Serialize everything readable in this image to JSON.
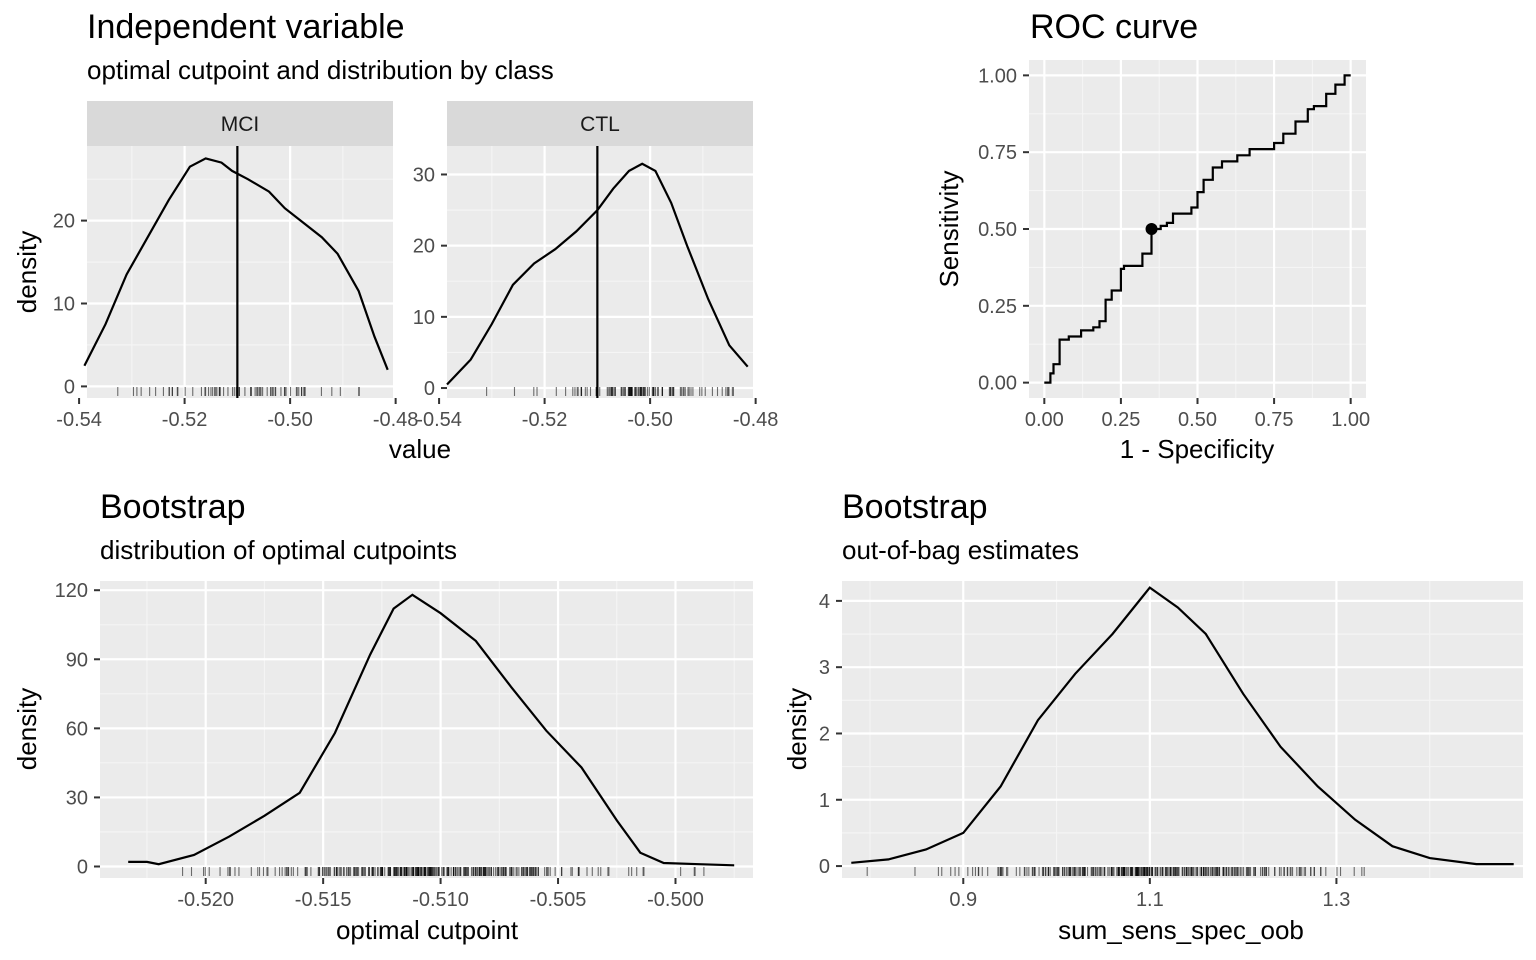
{
  "chart_data": [
    {
      "type": "line",
      "title": "Independent variable",
      "subtitle": "optimal cutpoint and distribution by class",
      "xlabel": "value",
      "ylabel": "density",
      "cutpoint": -0.51,
      "panels": [
        {
          "strip": "MCI",
          "xlim": [
            -0.54,
            -0.48
          ],
          "ylim": [
            0,
            29
          ],
          "xticks": [
            "-0.54",
            "-0.52",
            "-0.50",
            "-0.48"
          ],
          "yticks": [
            "0",
            "10",
            "20"
          ],
          "x": [
            -0.539,
            -0.535,
            -0.531,
            -0.527,
            -0.523,
            -0.519,
            -0.516,
            -0.513,
            -0.511,
            -0.508,
            -0.504,
            -0.501,
            -0.497,
            -0.494,
            -0.491,
            -0.487,
            -0.484,
            -0.4815
          ],
          "y": [
            2.5,
            7.5,
            13.5,
            18,
            22.5,
            26.5,
            27.5,
            27,
            26,
            25,
            23.5,
            21.5,
            19.5,
            18,
            16,
            11.5,
            6,
            2
          ]
        },
        {
          "strip": "CTL",
          "xlim": [
            -0.54,
            -0.48
          ],
          "ylim": [
            0,
            34
          ],
          "xticks": [
            "-0.54",
            "-0.52",
            "-0.50",
            "-0.48"
          ],
          "yticks": [
            "0",
            "10",
            "20",
            "30"
          ],
          "x": [
            -0.5385,
            -0.534,
            -0.53,
            -0.526,
            -0.522,
            -0.518,
            -0.514,
            -0.51,
            -0.507,
            -0.504,
            -0.5015,
            -0.499,
            -0.496,
            -0.493,
            -0.489,
            -0.485,
            -0.4815
          ],
          "y": [
            0.5,
            4,
            9,
            14.5,
            17.5,
            19.5,
            22,
            25,
            28,
            30.5,
            31.5,
            30.5,
            26,
            20,
            12.5,
            6,
            3
          ]
        }
      ]
    },
    {
      "type": "line",
      "title": "ROC curve",
      "xlabel": "1 - Specificity",
      "ylabel": "Sensitivity",
      "xlim": [
        0,
        1
      ],
      "ylim": [
        0,
        1
      ],
      "xticks": [
        "0.00",
        "0.25",
        "0.50",
        "0.75",
        "1.00"
      ],
      "yticks": [
        "0.00",
        "0.25",
        "0.50",
        "0.75",
        "1.00"
      ],
      "x": [
        0,
        0.02,
        0.03,
        0.05,
        0.08,
        0.12,
        0.13,
        0.16,
        0.18,
        0.2,
        0.22,
        0.25,
        0.26,
        0.3,
        0.32,
        0.35,
        0.38,
        0.4,
        0.42,
        0.45,
        0.48,
        0.5,
        0.52,
        0.55,
        0.58,
        0.6,
        0.63,
        0.67,
        0.72,
        0.75,
        0.78,
        0.82,
        0.86,
        0.88,
        0.92,
        0.95,
        0.98,
        1.0
      ],
      "y": [
        0,
        0.03,
        0.06,
        0.14,
        0.15,
        0.17,
        0.17,
        0.18,
        0.2,
        0.27,
        0.3,
        0.37,
        0.38,
        0.38,
        0.42,
        0.5,
        0.51,
        0.52,
        0.55,
        0.55,
        0.57,
        0.62,
        0.66,
        0.7,
        0.72,
        0.72,
        0.74,
        0.76,
        0.76,
        0.78,
        0.81,
        0.85,
        0.89,
        0.9,
        0.94,
        0.97,
        1.0,
        1.0
      ],
      "optimal_point": {
        "x": 0.35,
        "y": 0.5
      }
    },
    {
      "type": "line",
      "title": "Bootstrap",
      "subtitle": "distribution of optimal cutpoints",
      "xlabel": "optimal cutpoint",
      "ylabel": "density",
      "xlim": [
        -0.5245,
        -0.4967
      ],
      "ylim": [
        -5,
        124
      ],
      "xticks": [
        "-0.520",
        "-0.515",
        "-0.510",
        "-0.505",
        "-0.500"
      ],
      "yticks": [
        "0",
        "30",
        "60",
        "90",
        "120"
      ],
      "x": [
        -0.5233,
        -0.5225,
        -0.522,
        -0.5205,
        -0.519,
        -0.5175,
        -0.516,
        -0.5145,
        -0.513,
        -0.512,
        -0.5112,
        -0.51,
        -0.5085,
        -0.507,
        -0.5055,
        -0.504,
        -0.5025,
        -0.5015,
        -0.5005,
        -0.499,
        -0.4975
      ],
      "y": [
        2,
        2,
        1,
        5,
        13,
        22,
        32,
        58,
        92,
        112,
        118,
        110,
        98,
        78,
        59,
        43,
        20,
        6,
        1.5,
        1,
        0.5
      ]
    },
    {
      "type": "line",
      "title": "Bootstrap",
      "subtitle": "out-of-bag estimates",
      "xlabel": "sum_sens_spec_oob",
      "ylabel": "density",
      "xlim": [
        0.77,
        1.5
      ],
      "ylim": [
        -0.18,
        4.3
      ],
      "xticks": [
        "0.9",
        "1.1",
        "1.3"
      ],
      "yticks": [
        "0",
        "1",
        "2",
        "3",
        "4"
      ],
      "x": [
        0.78,
        0.82,
        0.86,
        0.9,
        0.94,
        0.98,
        1.02,
        1.06,
        1.1,
        1.13,
        1.16,
        1.2,
        1.24,
        1.28,
        1.32,
        1.36,
        1.4,
        1.45,
        1.49
      ],
      "y": [
        0.05,
        0.1,
        0.25,
        0.5,
        1.2,
        2.2,
        2.9,
        3.5,
        4.2,
        3.9,
        3.5,
        2.6,
        1.8,
        1.2,
        0.7,
        0.3,
        0.12,
        0.03,
        0.03
      ]
    }
  ]
}
